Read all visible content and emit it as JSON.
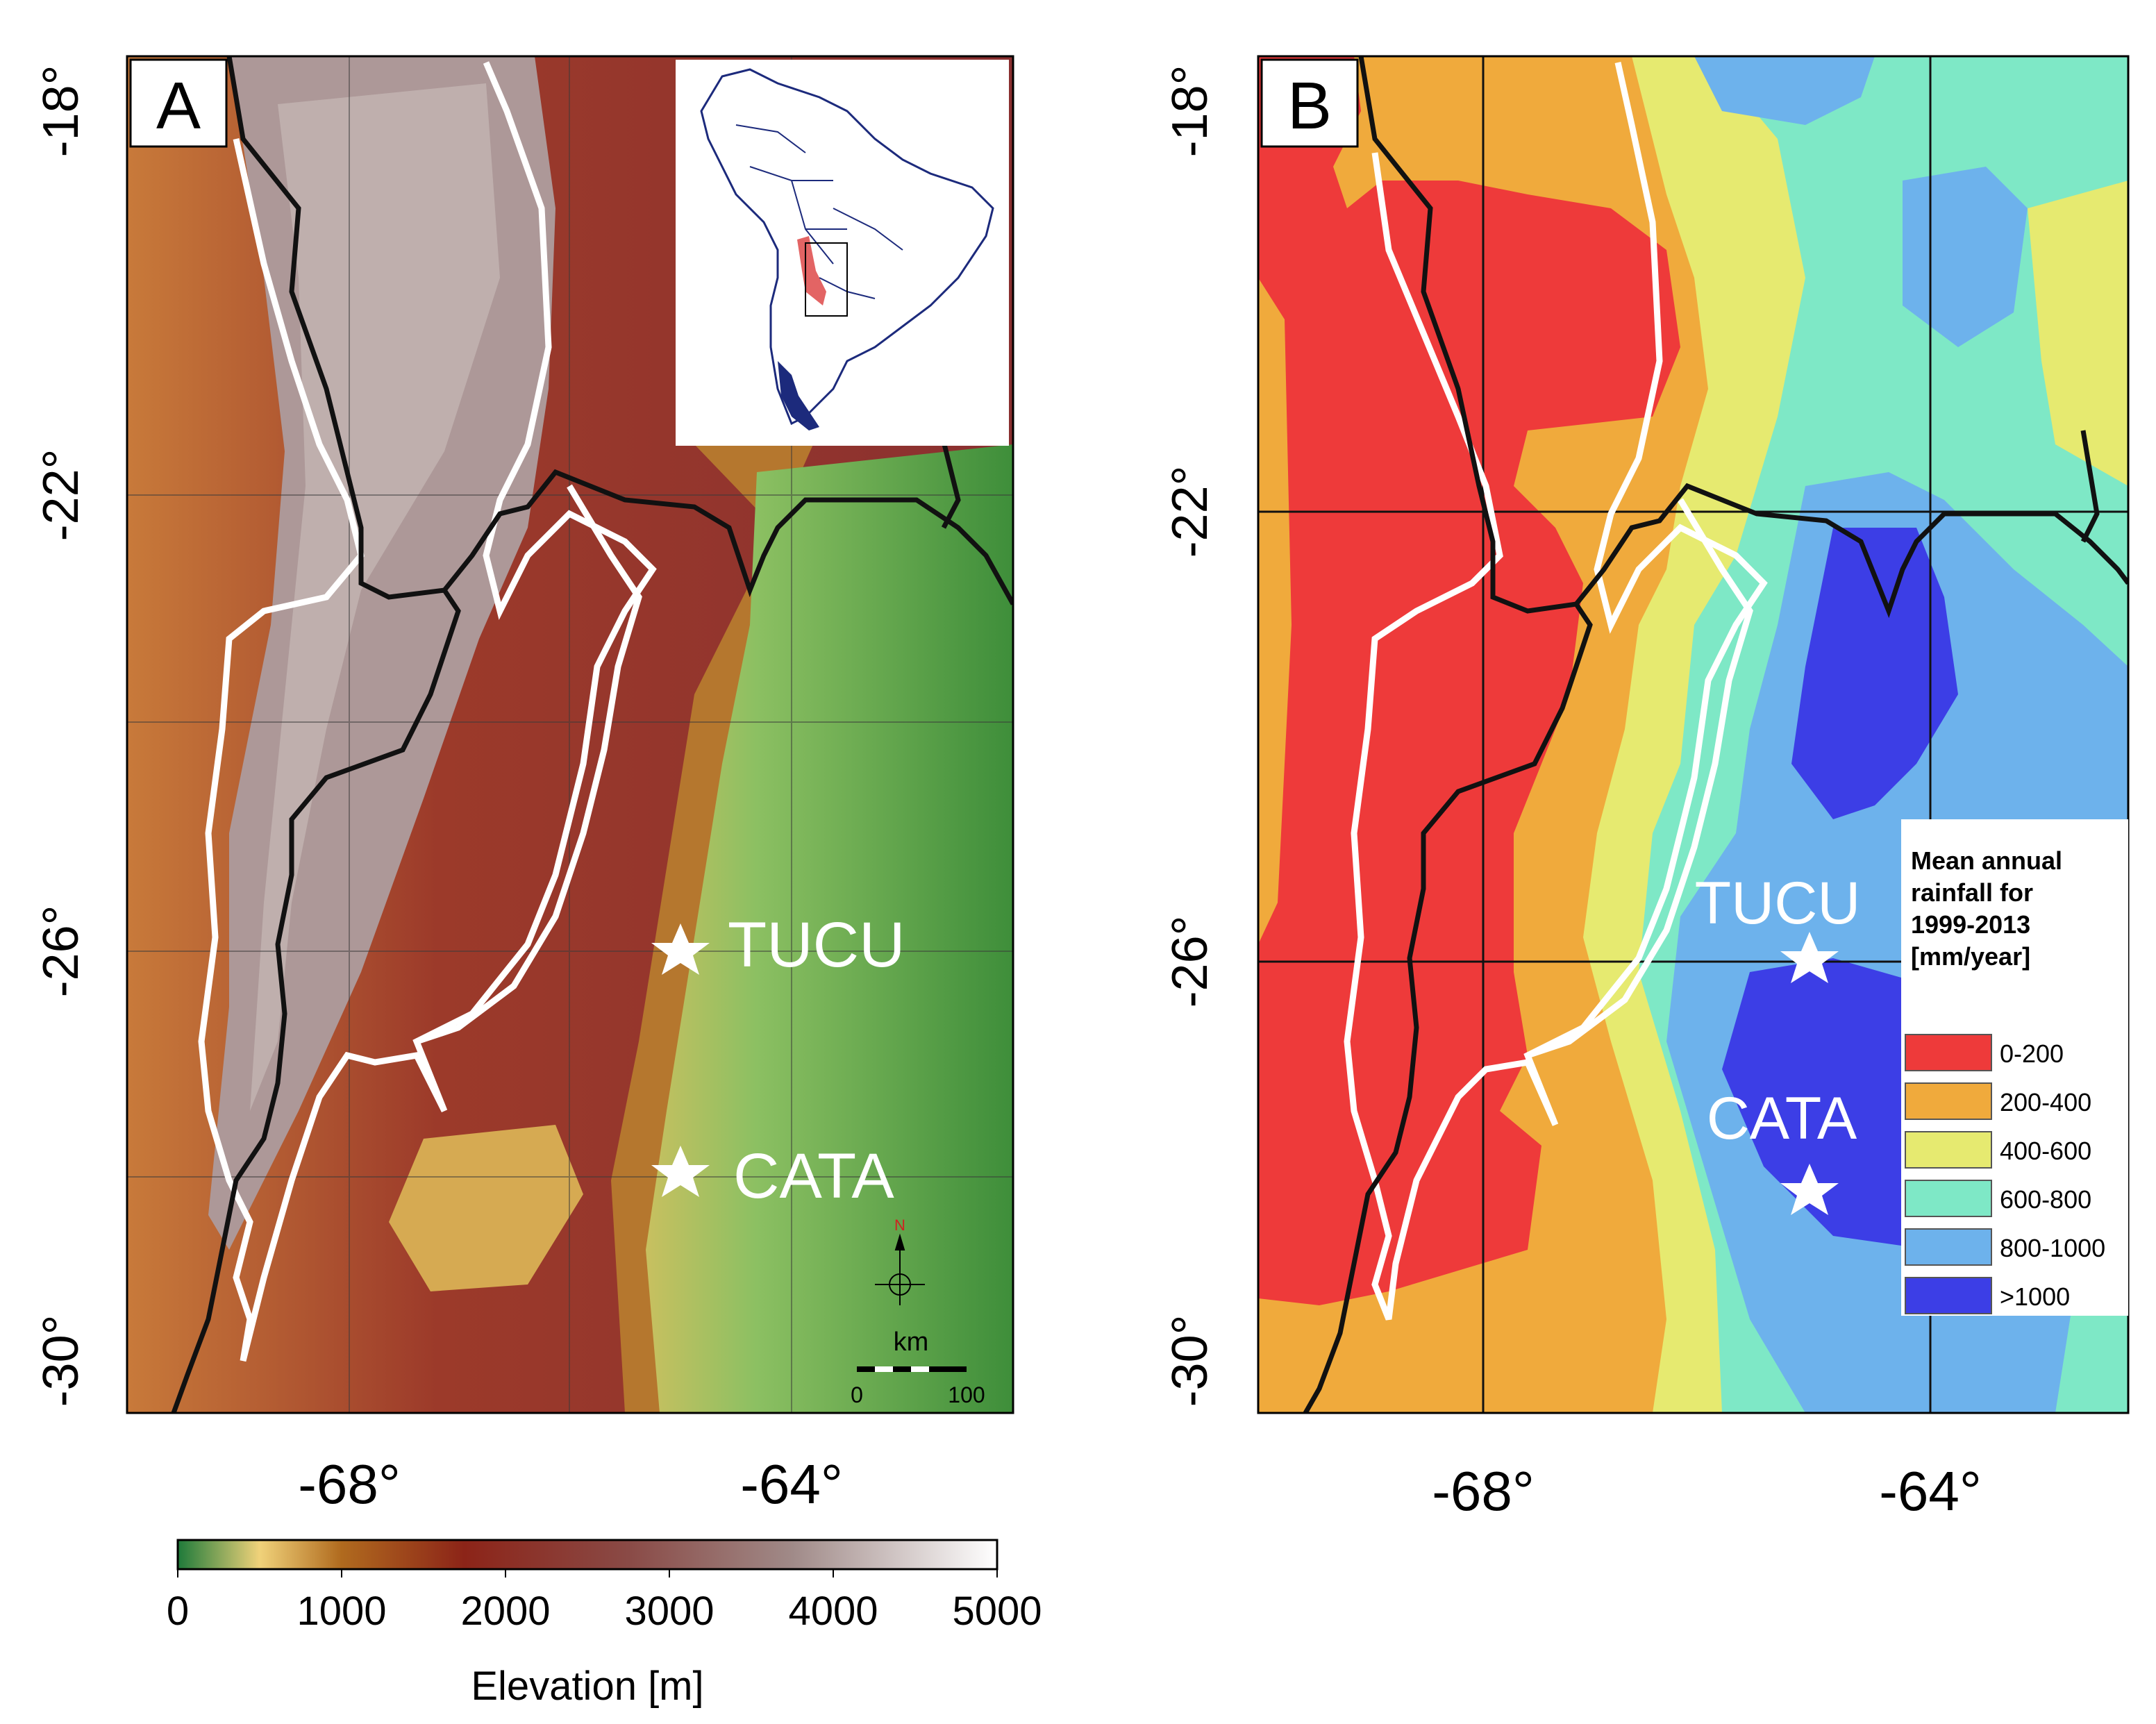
{
  "panel_a": {
    "label": "A",
    "lat_ticks": [
      "-18°",
      "-22°",
      "-26°",
      "-30°"
    ],
    "lon_ticks": [
      "-68°",
      "-64°"
    ],
    "stations": [
      {
        "name": "TUCU"
      },
      {
        "name": "CATA"
      }
    ],
    "north_arrow": "N",
    "scale_bar": {
      "unit": "km",
      "min_label": "0",
      "max_label": "100"
    }
  },
  "panel_b": {
    "label": "B",
    "lat_ticks": [
      "-18°",
      "-22°",
      "-26°",
      "-30°"
    ],
    "lon_ticks": [
      "-68°",
      "-64°"
    ],
    "stations": [
      {
        "name": "TUCU"
      },
      {
        "name": "CATA"
      }
    ],
    "legend": {
      "title_lines": [
        "Mean annual",
        "rainfall for",
        "1999-2013",
        "[mm/year]"
      ],
      "items": [
        {
          "label": "0-200",
          "color": "#ee3a3a"
        },
        {
          "label": "200-400",
          "color": "#f0aa3c"
        },
        {
          "label": "400-600",
          "color": "#e6ea70"
        },
        {
          "label": "600-800",
          "color": "#7ee8c6"
        },
        {
          "label": "800-1000",
          "color": "#6db2ec"
        },
        {
          "label": ">1000",
          "color": "#3c3ee6"
        }
      ]
    }
  },
  "colorbar": {
    "title": "Elevation [m]",
    "ticks": [
      "0",
      "1000",
      "2000",
      "3000",
      "4000",
      "5000"
    ]
  }
}
